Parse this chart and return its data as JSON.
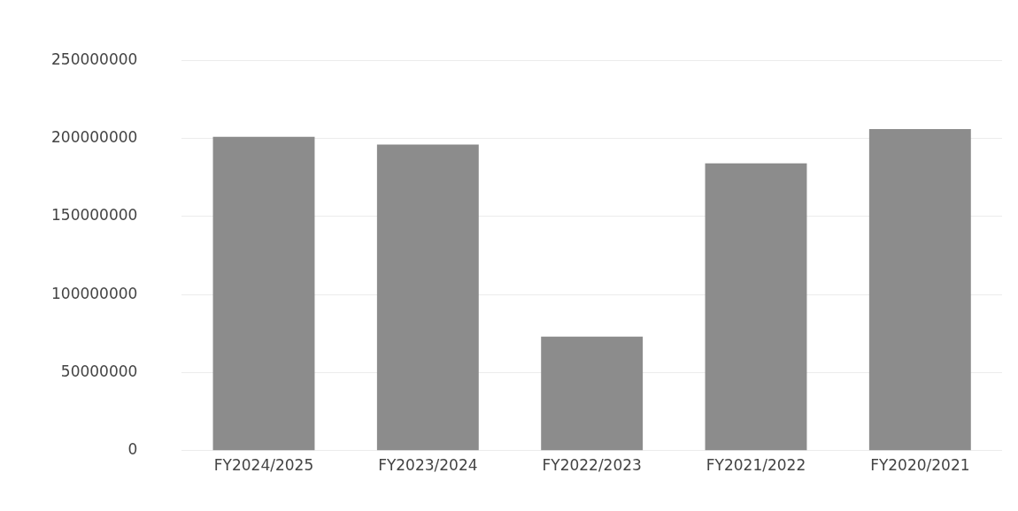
{
  "chart_data": {
    "type": "bar",
    "categories": [
      "FY2024/2025",
      "FY2023/2024",
      "FY2022/2023",
      "FY2021/2022",
      "FY2020/2021"
    ],
    "values": [
      201000000,
      196000000,
      73000000,
      184000000,
      206000000
    ],
    "color": "#8c8c8c",
    "ylim": [
      0,
      250000000
    ],
    "yticks": [
      0,
      50000000,
      100000000,
      150000000,
      200000000,
      250000000
    ],
    "grid": "y"
  }
}
